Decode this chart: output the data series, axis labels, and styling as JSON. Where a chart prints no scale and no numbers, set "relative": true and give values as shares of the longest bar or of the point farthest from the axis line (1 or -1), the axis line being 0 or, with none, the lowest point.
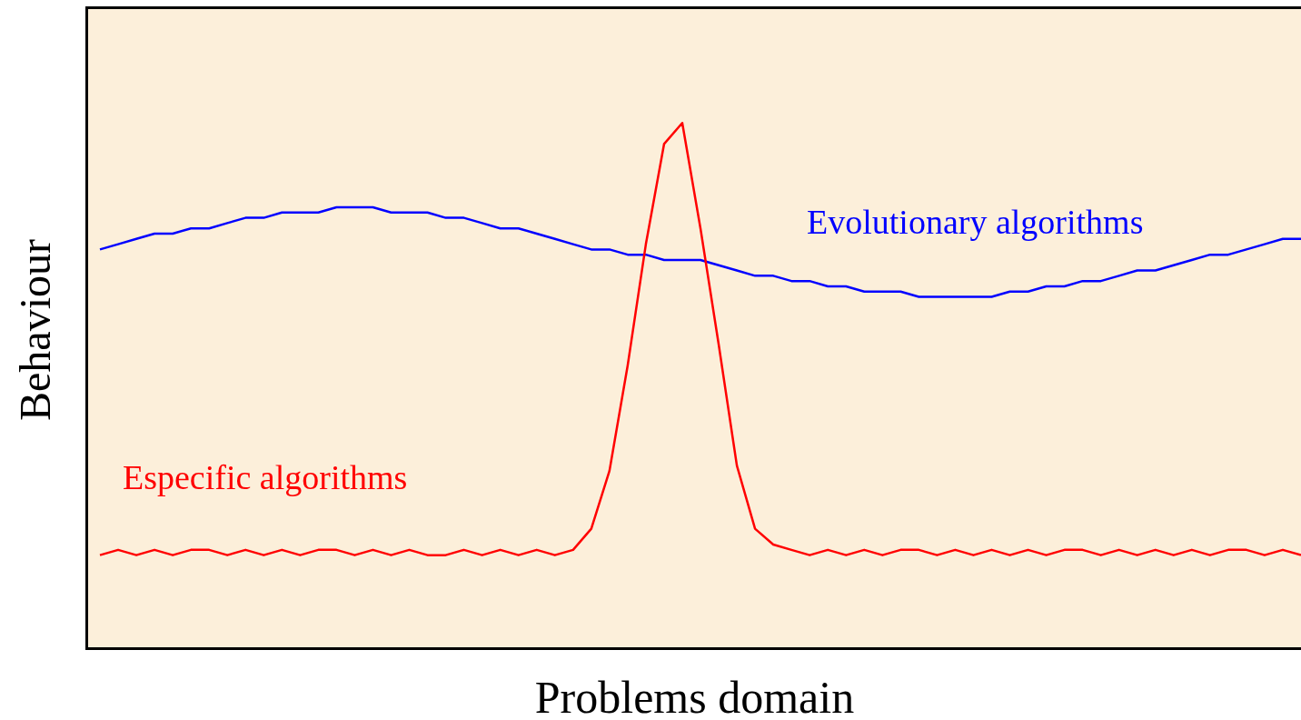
{
  "chart_data": {
    "type": "line",
    "relative": true,
    "xlabel": "Problems domain",
    "ylabel": "Behaviour",
    "categories": [
      null,
      null,
      null,
      null,
      null,
      null,
      null,
      null,
      null,
      null,
      null,
      null,
      null,
      null,
      null,
      null,
      null,
      null,
      null,
      null,
      null,
      null,
      null,
      null,
      null,
      null,
      null,
      null,
      null,
      null,
      null,
      null,
      null,
      null,
      null,
      null,
      null,
      null,
      null,
      null,
      null,
      null,
      null,
      null,
      null,
      null,
      null,
      null,
      null,
      null,
      null,
      null,
      null,
      null,
      null,
      null,
      null,
      null,
      null,
      null,
      null,
      null,
      null,
      null,
      null,
      null,
      null
    ],
    "series": [
      {
        "name": "Evolutionary algorithms",
        "color": "#0000ff",
        "values": [
          0.76,
          0.77,
          0.78,
          0.79,
          0.79,
          0.8,
          0.8,
          0.81,
          0.82,
          0.82,
          0.83,
          0.83,
          0.83,
          0.84,
          0.84,
          0.84,
          0.83,
          0.83,
          0.83,
          0.82,
          0.82,
          0.81,
          0.8,
          0.8,
          0.79,
          0.78,
          0.77,
          0.76,
          0.76,
          0.75,
          0.75,
          0.74,
          0.74,
          0.74,
          0.73,
          0.72,
          0.71,
          0.71,
          0.7,
          0.7,
          0.69,
          0.69,
          0.68,
          0.68,
          0.68,
          0.67,
          0.67,
          0.67,
          0.67,
          0.67,
          0.68,
          0.68,
          0.69,
          0.69,
          0.7,
          0.7,
          0.71,
          0.72,
          0.72,
          0.73,
          0.74,
          0.75,
          0.75,
          0.76,
          0.77,
          0.78,
          0.78
        ]
      },
      {
        "name": "Especific algorithms",
        "color": "#ff0000",
        "values": [
          0.18,
          0.19,
          0.18,
          0.19,
          0.18,
          0.19,
          0.19,
          0.18,
          0.19,
          0.18,
          0.19,
          0.18,
          0.19,
          0.19,
          0.18,
          0.19,
          0.18,
          0.19,
          0.18,
          0.18,
          0.19,
          0.18,
          0.19,
          0.18,
          0.19,
          0.18,
          0.19,
          0.23,
          0.34,
          0.54,
          0.77,
          0.96,
          1,
          0.8,
          0.58,
          0.35,
          0.23,
          0.2,
          0.19,
          0.18,
          0.19,
          0.18,
          0.19,
          0.18,
          0.19,
          0.19,
          0.18,
          0.19,
          0.18,
          0.19,
          0.18,
          0.19,
          0.18,
          0.19,
          0.19,
          0.18,
          0.19,
          0.18,
          0.19,
          0.18,
          0.19,
          0.18,
          0.19,
          0.19,
          0.18,
          0.19,
          0.18
        ]
      }
    ]
  }
}
